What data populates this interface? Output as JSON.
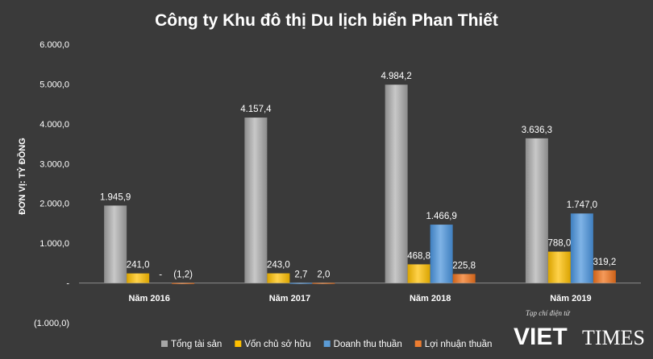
{
  "chart_data": {
    "type": "bar",
    "title": "Công ty Khu đô thị Du lịch biển Phan Thiết",
    "ylabel": "ĐƠN VỊ: TỶ ĐỒNG",
    "xlabel": "",
    "ylim": [
      -1000,
      6000
    ],
    "yticks": [
      -1000,
      0,
      1000,
      2000,
      3000,
      4000,
      5000,
      6000
    ],
    "ytick_labels": [
      "(1.000,0)",
      "-",
      "1.000,0",
      "2.000,0",
      "3.000,0",
      "4.000,0",
      "5.000,0",
      "6.000,0"
    ],
    "categories": [
      "Năm 2016",
      "Năm 2017",
      "Năm 2018",
      "Năm 2019"
    ],
    "series": [
      {
        "name": "Tổng tài sản",
        "color": "#a6a6a6",
        "values": [
          1945.9,
          4157.4,
          4984.2,
          3636.3
        ],
        "labels": [
          "1.945,9",
          "4.157,4",
          "4.984,2",
          "3.636,3"
        ]
      },
      {
        "name": "Vốn chủ sở hữu",
        "color": "#ffc000",
        "values": [
          241.0,
          243.0,
          468.8,
          788.0
        ],
        "labels": [
          "241,0",
          "243,0",
          "468,8",
          "788,0"
        ]
      },
      {
        "name": "Doanh thu thuần",
        "color": "#5b9bd5",
        "values": [
          0,
          2.7,
          1466.9,
          1747.0
        ],
        "labels": [
          "-",
          "2,7",
          "1.466,9",
          "1.747,0"
        ]
      },
      {
        "name": "Lợi nhuận thuần",
        "color": "#ed7d31",
        "values": [
          -1.2,
          2.0,
          225.8,
          319.2
        ],
        "labels": [
          "(1,2)",
          "2,0",
          "225,8",
          "319,2"
        ]
      }
    ],
    "legend_position": "bottom",
    "grid": false
  },
  "watermark": {
    "tagline": "Tạp chí điện tử",
    "brand_viet": "VIET",
    "brand_times": "TIMES"
  }
}
